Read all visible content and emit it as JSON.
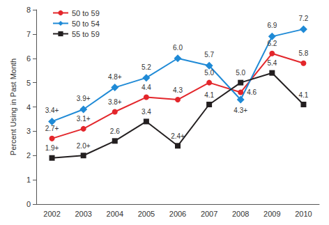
{
  "chart_data": {
    "type": "line",
    "y_label": "Percent Using in Past Month",
    "categories": [
      "2002",
      "2003",
      "2004",
      "2005",
      "2006",
      "2007",
      "2008",
      "2009",
      "2010"
    ],
    "series": [
      {
        "name": "50 to 59",
        "color": "#e3262b",
        "marker": "circle",
        "values": [
          2.7,
          3.1,
          3.8,
          4.4,
          4.3,
          5.0,
          4.6,
          6.2,
          5.8
        ],
        "value_labels": [
          "2.7+",
          "3.1+",
          "3.8+",
          "4.4",
          "4.3",
          "5.0",
          "4.6",
          "6.2",
          "5.8"
        ]
      },
      {
        "name": "50 to 54",
        "color": "#1f8ad6",
        "marker": "diamond",
        "values": [
          3.4,
          3.9,
          4.8,
          5.2,
          6.0,
          5.7,
          4.3,
          6.9,
          7.2
        ],
        "value_labels": [
          "3.4+",
          "3.9+",
          "4.8+",
          "5.2",
          "6.0",
          "5.7",
          "4.3+",
          "6.9",
          "7.2"
        ]
      },
      {
        "name": "55 to 59",
        "color": "#231f20",
        "marker": "square",
        "values": [
          1.9,
          2.0,
          2.6,
          3.4,
          2.4,
          4.1,
          5.0,
          5.4,
          4.1
        ],
        "value_labels": [
          "1.9+",
          "2.0+",
          "2.6",
          "3.4",
          "2.4+",
          "4.1",
          "5.0",
          "5.4",
          "4.1"
        ]
      }
    ],
    "ylim": [
      0,
      8
    ],
    "yticks": [
      0,
      1,
      2,
      3,
      4,
      5,
      6,
      7,
      8
    ],
    "grid": false,
    "legend": "top-left",
    "data_labels": true
  }
}
